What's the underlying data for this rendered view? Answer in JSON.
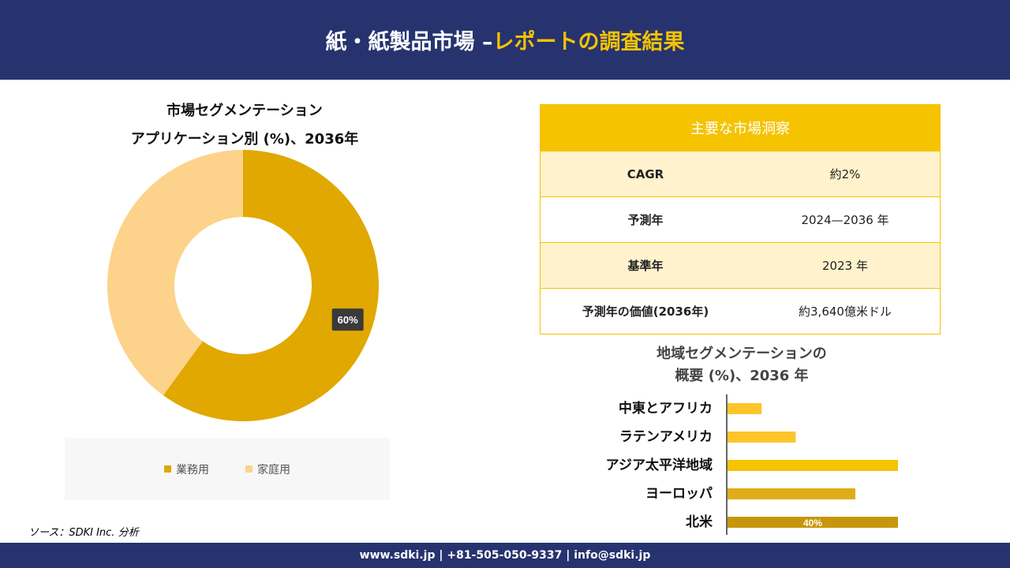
{
  "header": {
    "title_main": "紙・紙製品市場 –",
    "title_accent": "レポートの調査結果"
  },
  "donut": {
    "title_line1": "市場セグメンテーション",
    "title_line2": "アプリケーション別 (%)、2036年"
  },
  "insights": {
    "heading": "主要な市場洞察",
    "rows": [
      {
        "key": "CAGR",
        "value": "約2%"
      },
      {
        "key": "予測年",
        "value": "2024—2036 年"
      },
      {
        "key": "基準年",
        "value": "2023 年"
      },
      {
        "key": "予測年の価値(2036年)",
        "value": "約3,640億米ドル"
      }
    ]
  },
  "bars": {
    "title_line1": "地域セグメンテーションの",
    "title_line2": "概要 (%)、2036 年"
  },
  "source": "ソース：SDKI Inc. 分析",
  "footer": "www.sdki.jp | +81-505-050-9337 | info@sdki.jp",
  "colors": {
    "navy": "#26336f",
    "yellow": "#f5c300",
    "donut_business": "#e0a800",
    "donut_home": "#fdd28a",
    "bar_light": "#fcc62a",
    "bar_mid": "#f5c300",
    "bar_dark": "#e0ad17",
    "bar_darkest": "#c8960a"
  },
  "chart_data": [
    {
      "type": "pie",
      "title": "市場セグメンテーション アプリケーション別 (%)、2036年",
      "categories": [
        "業務用",
        "家庭用"
      ],
      "values": [
        60,
        40
      ],
      "data_labels": [
        "60%",
        ""
      ],
      "legend_position": "bottom"
    },
    {
      "type": "bar",
      "orientation": "horizontal",
      "title": "地域セグメンテーションの概要 (%)、2036 年",
      "categories": [
        "中東とアフリカ",
        "ラテンアメリカ",
        "アジア太平洋地域",
        "ヨーロッパ",
        "北米"
      ],
      "values": [
        8,
        16,
        40,
        30,
        40
      ],
      "data_labels": [
        "",
        "",
        "",
        "",
        "40%"
      ],
      "xlim": [
        0,
        50
      ],
      "grid": false
    }
  ]
}
